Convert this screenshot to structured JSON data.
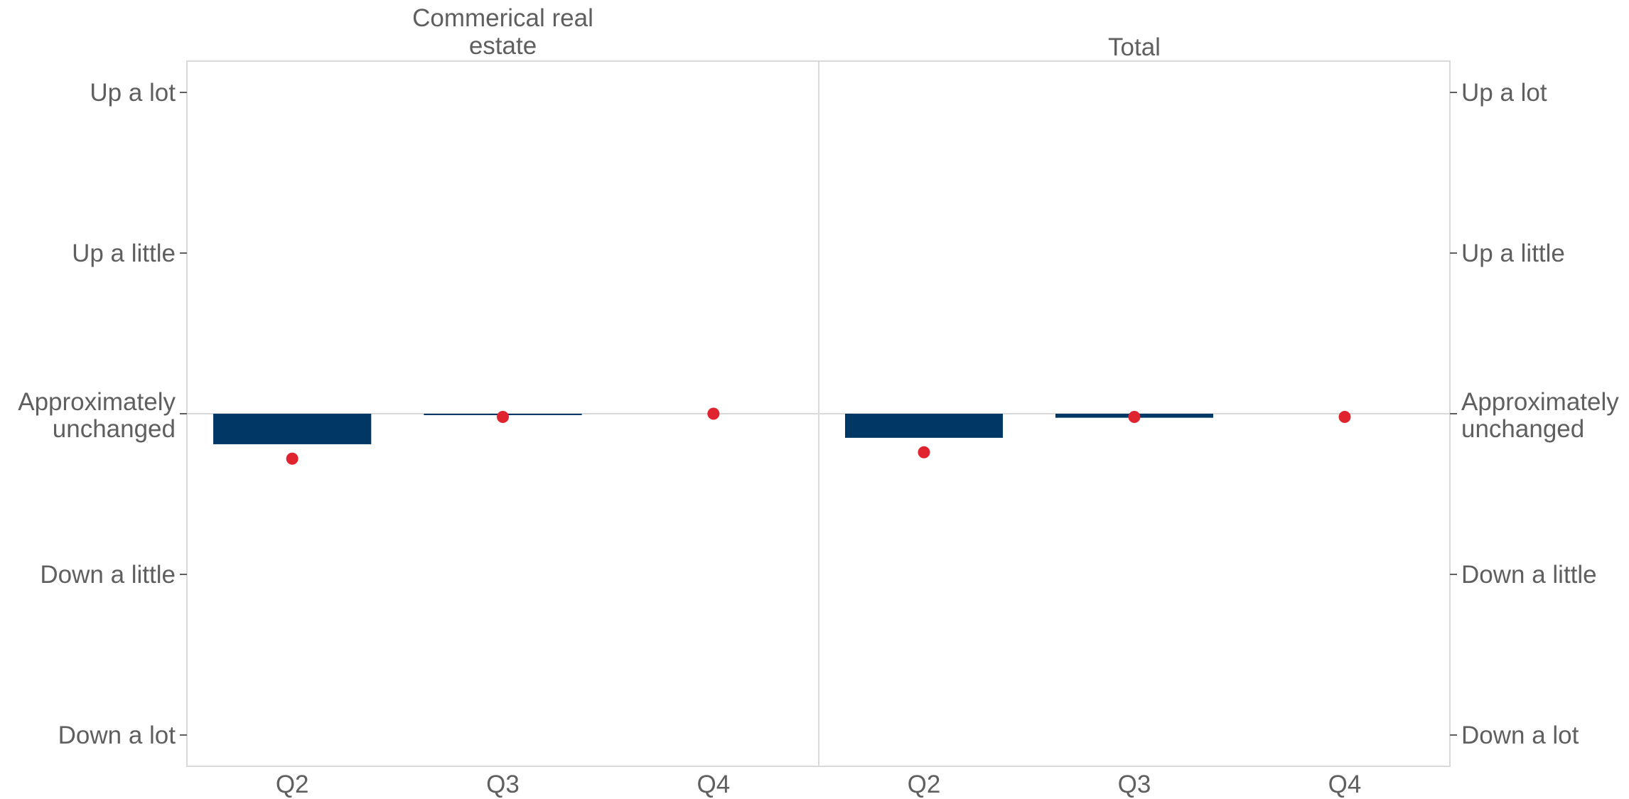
{
  "chart_data": {
    "type": "bar",
    "categories": [
      "Q2",
      "Q3",
      "Q4"
    ],
    "y_levels": [
      "Down a lot",
      "Down a little",
      "Approximately unchanged",
      "Up a little",
      "Up a lot"
    ],
    "y_level_values": [
      -2,
      -1,
      0,
      1,
      2
    ],
    "ylim": [
      -2.2,
      2.2
    ],
    "colors": {
      "bar": "#003865",
      "dot": "#e0242f"
    },
    "panels": [
      {
        "title": "Commerical real estate",
        "bars": [
          -0.19,
          -0.005,
          0.0
        ],
        "dots": [
          -0.28,
          -0.02,
          0.0
        ]
      },
      {
        "title": "Total",
        "bars": [
          -0.15,
          -0.025,
          0.0
        ],
        "dots": [
          -0.24,
          -0.02,
          -0.02
        ]
      }
    ]
  }
}
